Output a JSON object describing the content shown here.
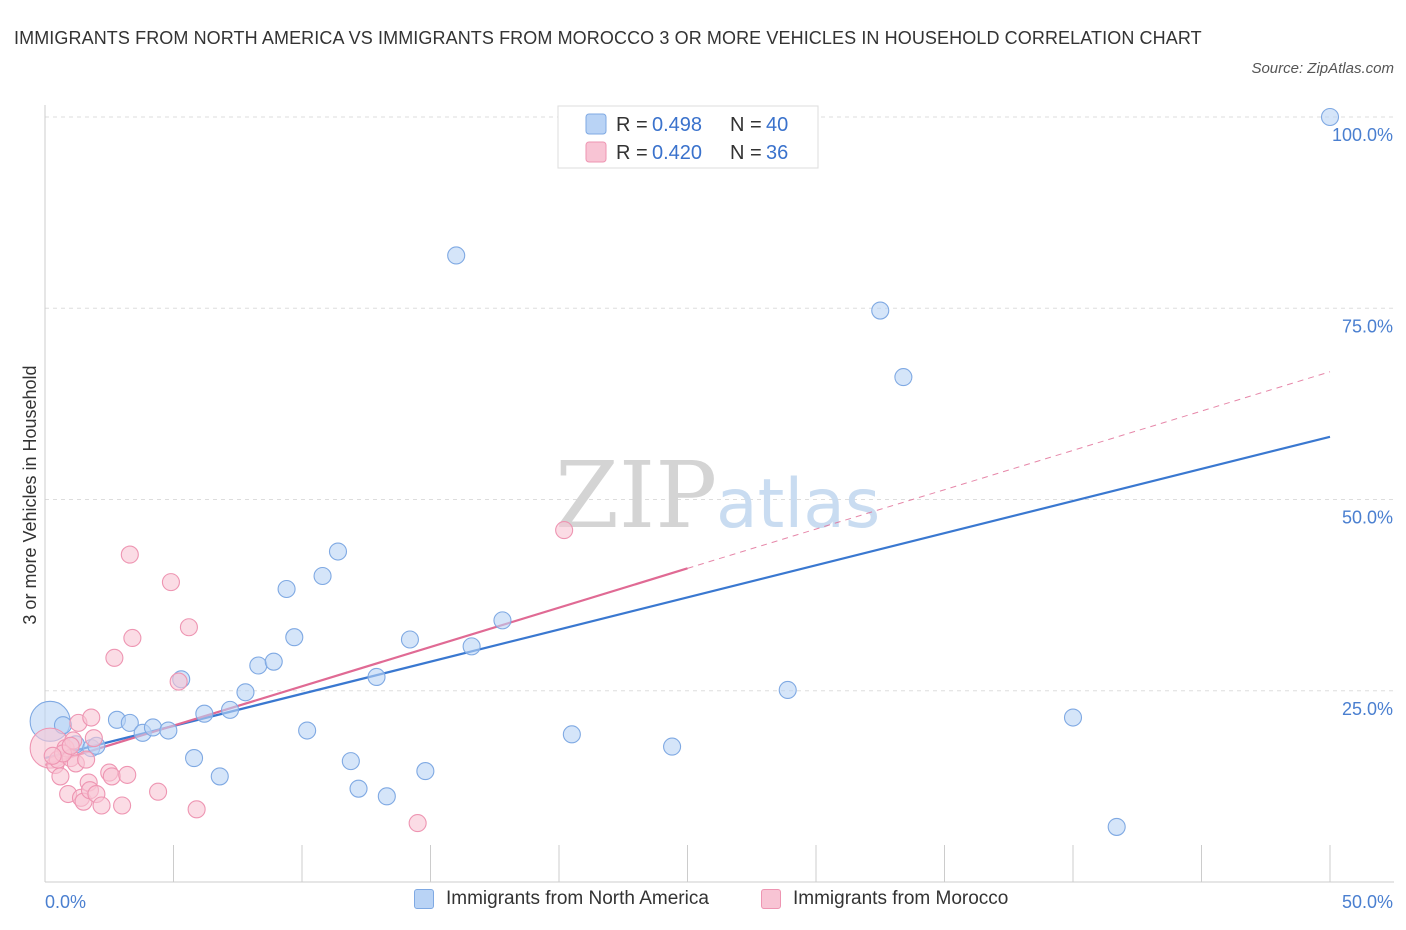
{
  "title": "IMMIGRANTS FROM NORTH AMERICA VS IMMIGRANTS FROM MOROCCO 3 OR MORE VEHICLES IN HOUSEHOLD CORRELATION CHART",
  "source": "Source: ZipAtlas.com",
  "watermark": {
    "zip": "ZIP",
    "atlas": "atlas"
  },
  "colors": {
    "blue_fill": "#b9d3f5",
    "blue_stroke": "#7fa9e3",
    "blue_line": "#3a78d0",
    "pink_fill": "#f8c4d4",
    "pink_stroke": "#ee95b2",
    "pink_line": "#e06a94",
    "tick_text": "#4a7fd0",
    "grid": "#dddddd"
  },
  "legend": {
    "rows": [
      {
        "r_label": "R = ",
        "r_value": "0.498",
        "n_label": "N = ",
        "n_value": "40",
        "color": "blue"
      },
      {
        "r_label": "R = ",
        "r_value": "0.420",
        "n_label": "N = ",
        "n_value": "36",
        "color": "pink"
      }
    ]
  },
  "chart_data": {
    "type": "scatter",
    "title": "IMMIGRANTS FROM NORTH AMERICA VS IMMIGRANTS FROM MOROCCO 3 OR MORE VEHICLES IN HOUSEHOLD CORRELATION CHART",
    "xlabel": "",
    "ylabel": "3 or more Vehicles in Household",
    "xlim": [
      0,
      50
    ],
    "ylim": [
      0,
      100
    ],
    "x_tick_labels": [
      "0.0%",
      "50.0%"
    ],
    "y_ticks": [
      25,
      50,
      75,
      100
    ],
    "y_tick_labels": [
      "25.0%",
      "50.0%",
      "75.0%",
      "100.0%"
    ],
    "grid": true,
    "legend_position": "top-center",
    "series": [
      {
        "name": "Immigrants from North America",
        "color": "blue",
        "trend": {
          "x": [
            0,
            50
          ],
          "y": [
            16.2,
            58.2
          ]
        },
        "points": [
          {
            "x": 0.2,
            "y": 21.0,
            "large": true
          },
          {
            "x": 0.7,
            "y": 20.5
          },
          {
            "x": 1.2,
            "y": 18.0
          },
          {
            "x": 1.8,
            "y": 17.5
          },
          {
            "x": 2.8,
            "y": 21.2
          },
          {
            "x": 3.3,
            "y": 20.8
          },
          {
            "x": 3.8,
            "y": 19.5
          },
          {
            "x": 4.2,
            "y": 20.2
          },
          {
            "x": 4.8,
            "y": 19.8
          },
          {
            "x": 5.3,
            "y": 26.5
          },
          {
            "x": 5.8,
            "y": 16.2
          },
          {
            "x": 6.2,
            "y": 22.0
          },
          {
            "x": 6.8,
            "y": 13.8
          },
          {
            "x": 7.2,
            "y": 22.5
          },
          {
            "x": 7.8,
            "y": 24.8
          },
          {
            "x": 8.3,
            "y": 28.3
          },
          {
            "x": 8.9,
            "y": 28.8
          },
          {
            "x": 9.4,
            "y": 38.3
          },
          {
            "x": 9.7,
            "y": 32.0
          },
          {
            "x": 10.2,
            "y": 19.8
          },
          {
            "x": 10.8,
            "y": 40.0
          },
          {
            "x": 11.4,
            "y": 43.2
          },
          {
            "x": 11.9,
            "y": 15.8
          },
          {
            "x": 12.2,
            "y": 12.2
          },
          {
            "x": 12.9,
            "y": 26.8
          },
          {
            "x": 13.3,
            "y": 11.2
          },
          {
            "x": 14.2,
            "y": 31.7
          },
          {
            "x": 14.8,
            "y": 14.5
          },
          {
            "x": 16.0,
            "y": 81.9
          },
          {
            "x": 16.6,
            "y": 30.8
          },
          {
            "x": 17.8,
            "y": 34.2
          },
          {
            "x": 20.5,
            "y": 19.3
          },
          {
            "x": 24.4,
            "y": 17.7
          },
          {
            "x": 28.9,
            "y": 25.1
          },
          {
            "x": 32.5,
            "y": 74.7
          },
          {
            "x": 33.4,
            "y": 66.0
          },
          {
            "x": 40.0,
            "y": 21.5
          },
          {
            "x": 41.7,
            "y": 7.2
          },
          {
            "x": 50.0,
            "y": 100.0
          },
          {
            "x": 2.0,
            "y": 17.8
          }
        ]
      },
      {
        "name": "Immigrants from Morocco",
        "color": "pink",
        "trend_solid": {
          "x": [
            0,
            25
          ],
          "y": [
            15.3,
            41.0
          ]
        },
        "trend_dashed": {
          "x": [
            25,
            50
          ],
          "y": [
            41.0,
            66.7
          ]
        },
        "points": [
          {
            "x": 0.2,
            "y": 17.5,
            "large": true
          },
          {
            "x": 0.4,
            "y": 15.3
          },
          {
            "x": 0.5,
            "y": 16.0
          },
          {
            "x": 0.6,
            "y": 13.8
          },
          {
            "x": 0.8,
            "y": 17.5
          },
          {
            "x": 0.9,
            "y": 11.5
          },
          {
            "x": 1.0,
            "y": 16.2
          },
          {
            "x": 1.1,
            "y": 18.5
          },
          {
            "x": 1.2,
            "y": 15.5
          },
          {
            "x": 1.3,
            "y": 20.8
          },
          {
            "x": 1.4,
            "y": 11.0
          },
          {
            "x": 1.5,
            "y": 10.5
          },
          {
            "x": 1.6,
            "y": 16.0
          },
          {
            "x": 1.7,
            "y": 13.0
          },
          {
            "x": 1.75,
            "y": 12.0
          },
          {
            "x": 1.8,
            "y": 21.5
          },
          {
            "x": 1.9,
            "y": 18.8
          },
          {
            "x": 2.0,
            "y": 11.5
          },
          {
            "x": 2.2,
            "y": 10.0
          },
          {
            "x": 2.5,
            "y": 14.3
          },
          {
            "x": 2.6,
            "y": 13.8
          },
          {
            "x": 2.7,
            "y": 29.3
          },
          {
            "x": 3.0,
            "y": 10.0
          },
          {
            "x": 3.2,
            "y": 14.0
          },
          {
            "x": 3.3,
            "y": 42.8
          },
          {
            "x": 3.4,
            "y": 31.9
          },
          {
            "x": 4.4,
            "y": 11.8
          },
          {
            "x": 4.9,
            "y": 39.2
          },
          {
            "x": 5.2,
            "y": 26.2
          },
          {
            "x": 5.6,
            "y": 33.3
          },
          {
            "x": 5.9,
            "y": 9.5
          },
          {
            "x": 14.5,
            "y": 7.7
          },
          {
            "x": 20.2,
            "y": 46.0
          },
          {
            "x": 0.7,
            "y": 16.8
          },
          {
            "x": 1.0,
            "y": 17.8
          },
          {
            "x": 0.3,
            "y": 16.5
          }
        ]
      }
    ]
  },
  "bottom_legend": {
    "items": [
      {
        "label": "Immigrants from North America",
        "color": "blue"
      },
      {
        "label": "Immigrants from Morocco",
        "color": "pink"
      }
    ]
  }
}
